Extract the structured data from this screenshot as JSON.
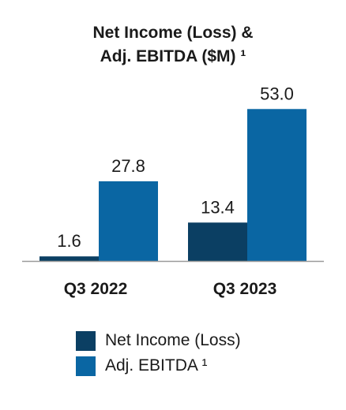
{
  "chart_data": {
    "type": "bar",
    "title_lines": [
      "Net Income (Loss) &",
      "Adj. EBITDA ($M) ¹"
    ],
    "categories": [
      "Q3 2022",
      "Q3 2023"
    ],
    "series": [
      {
        "name": "Net Income (Loss)",
        "values": [
          1.6,
          13.4
        ],
        "labels": [
          "1.6",
          "13.4"
        ],
        "color": "#0b3f63"
      },
      {
        "name": "Adj. EBITDA ¹",
        "values": [
          27.8,
          53.0
        ],
        "labels": [
          "27.8",
          "53.0"
        ],
        "color": "#0a66a3"
      }
    ],
    "ylim": [
      0,
      55
    ],
    "axis_color": "#9a9a9a"
  }
}
